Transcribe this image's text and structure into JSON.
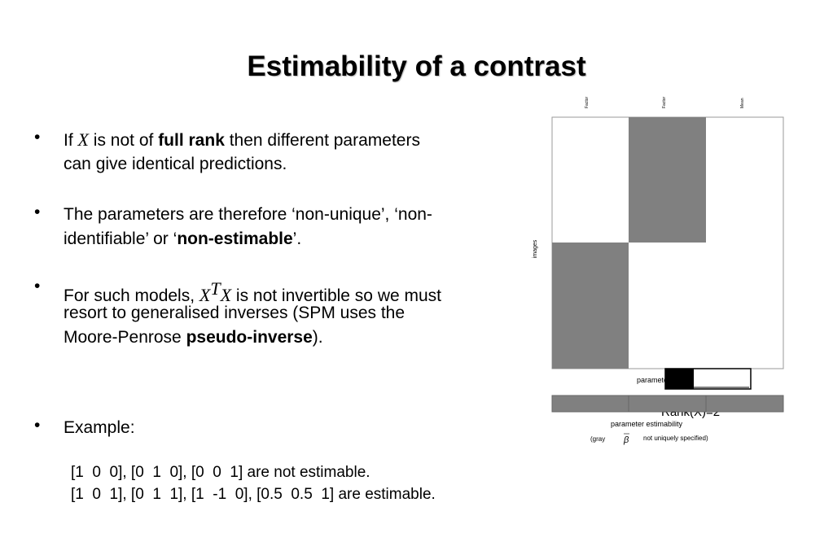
{
  "header": {
    "title": "Estimability of a contrast"
  },
  "bullet_symbol": "•",
  "bullets": [
    [
      [
        "If ",
        "X",
        " is not of ",
        "full rank",
        " then different parameters"
      ],
      [
        "can give identical predictions."
      ]
    ],
    [
      [
        "The parameters are therefore ‘non-unique’, ‘non-"
      ],
      [
        "identifiable’ or ‘",
        "non-estimable",
        "’."
      ]
    ],
    [
      [
        "For such models, ",
        "X",
        "T",
        "X",
        " is not invertible so we must"
      ],
      [
        "resort to generalised inverses (SPM uses the"
      ],
      [
        "Moore-Penrose ",
        "pseudo-inverse",
        ")."
      ]
    ],
    [
      [
        "Example:"
      ]
    ]
  ],
  "examples": [
    "[1  0  0], [0  1  0], [0  0  1] are not estimable.",
    "[1  0  1], [0  1  1], [1  -1  0], [0.5  0.5  1] are estimable."
  ],
  "figure": {
    "column_labels": [
      "Factor",
      "Factor",
      "Mean"
    ],
    "row_label": "images",
    "parameters_label": "parameters",
    "rank_label": "Rank(X)=2",
    "estimability_label": "parameter estimability",
    "note": [
      "(gray",
      "β",
      "not uniquely specified)"
    ]
  }
}
